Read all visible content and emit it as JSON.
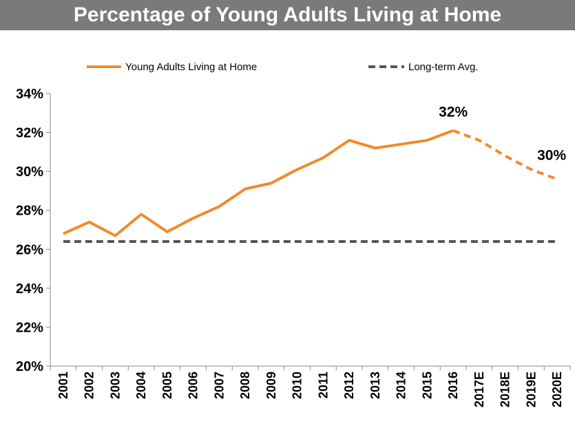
{
  "title": "Percentage of Young Adults Living at Home",
  "colors": {
    "series": "#f08a2c",
    "avg": "#555555",
    "title_bg": "#7a7a7a"
  },
  "chart_data": {
    "type": "line",
    "title": "Percentage of Young Adults Living at Home",
    "categories": [
      "2001",
      "2002",
      "2003",
      "2004",
      "2005",
      "2006",
      "2007",
      "2008",
      "2009",
      "2010",
      "2011",
      "2012",
      "2013",
      "2014",
      "2015",
      "2016",
      "2017E",
      "2018E",
      "2019E",
      "2020E"
    ],
    "series": [
      {
        "name": "Young Adults Living at Home",
        "values": [
          26.8,
          27.4,
          26.7,
          27.8,
          26.9,
          27.6,
          28.2,
          29.1,
          29.4,
          30.1,
          30.7,
          31.6,
          31.2,
          31.4,
          31.6,
          32.1,
          31.6,
          30.8,
          30.1,
          29.6
        ],
        "style": "solid-then-dashed",
        "dashed_from_index": 15
      },
      {
        "name": "Long-term Avg.",
        "values": [
          26.4,
          26.4,
          26.4,
          26.4,
          26.4,
          26.4,
          26.4,
          26.4,
          26.4,
          26.4,
          26.4,
          26.4,
          26.4,
          26.4,
          26.4,
          26.4,
          26.4,
          26.4,
          26.4,
          26.4
        ],
        "style": "dashed"
      }
    ],
    "ylim": [
      20,
      34
    ],
    "yticks": [
      "20%",
      "22%",
      "24%",
      "26%",
      "28%",
      "30%",
      "32%",
      "34%"
    ],
    "annotations": [
      {
        "text": "32%",
        "index": 15
      },
      {
        "text": "30%",
        "index": 19
      }
    ],
    "legend_position": "top",
    "grid": false
  }
}
